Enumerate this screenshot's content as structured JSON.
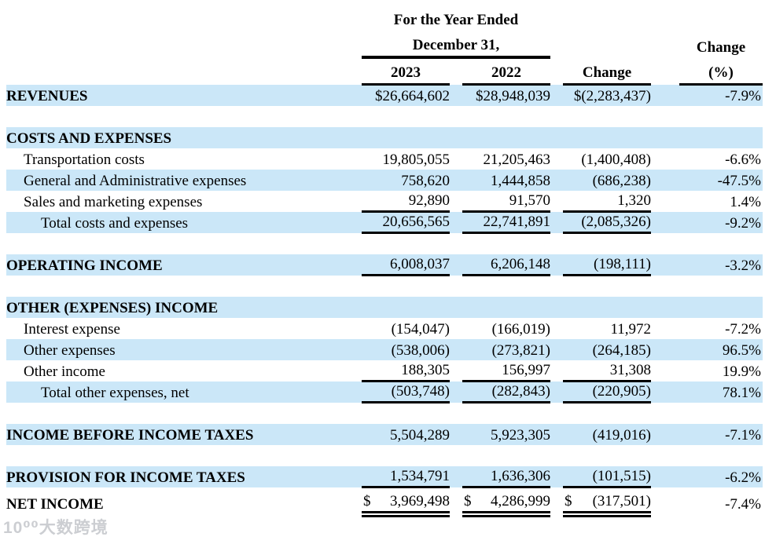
{
  "colors": {
    "row_highlight": "#cbe7f8",
    "rule": "#000000",
    "text": "#000000",
    "watermark": "#c3c6ca"
  },
  "header": {
    "group_title_line1": "For the Year Ended",
    "group_title_line2": "December 31,",
    "col_2023": "2023",
    "col_2022": "2022",
    "col_change": "Change",
    "col_change_pct_line1": "Change",
    "col_change_pct_line2": "(%)"
  },
  "watermark": "10⁰⁰大数跨境",
  "table": {
    "rows": [
      {
        "name": "revenues",
        "label": "REVENUES",
        "bold": true,
        "bg": "blue",
        "v2023": "$26,664,602",
        "v2022": "$28,948,039",
        "change": "$(2,283,437)",
        "pct": "-7.9%",
        "ul": "none"
      },
      {
        "name": "spacer-1",
        "spacer": true
      },
      {
        "name": "costs-and-expenses-header",
        "label": "COSTS AND EXPENSES",
        "bold": true,
        "bg": "blue",
        "ul": "none"
      },
      {
        "name": "transportation-costs",
        "label": "Transportation costs",
        "indent": 1,
        "bg": "white",
        "v2023": "19,805,055",
        "v2022": "21,205,463",
        "change": "(1,400,408)",
        "pct": "-6.6%",
        "ul": "none"
      },
      {
        "name": "general-admin-expenses",
        "label": "General and Administrative expenses",
        "indent": 1,
        "bg": "blue",
        "v2023": "758,620",
        "v2022": "1,444,858",
        "change": "(686,238)",
        "pct": "-47.5%",
        "ul": "none"
      },
      {
        "name": "sales-marketing-expenses",
        "label": "Sales and marketing expenses",
        "indent": 1,
        "bg": "white",
        "v2023": "92,890",
        "v2022": "91,570",
        "change": "1,320",
        "pct": "1.4%",
        "ul": "single"
      },
      {
        "name": "total-costs-expenses",
        "label": "Total costs and expenses",
        "indent": 2,
        "bg": "blue",
        "v2023": "20,656,565",
        "v2022": "22,741,891",
        "change": "(2,085,326)",
        "pct": "-9.2%",
        "ul": "single"
      },
      {
        "name": "spacer-2",
        "spacer": true
      },
      {
        "name": "operating-income",
        "label": "OPERATING INCOME",
        "bold": true,
        "bg": "blue",
        "v2023": "6,008,037",
        "v2022": "6,206,148",
        "change": "(198,111)",
        "pct": "-3.2%",
        "ul": "single"
      },
      {
        "name": "spacer-3",
        "spacer": true
      },
      {
        "name": "other-expenses-income-header",
        "label": "OTHER (EXPENSES) INCOME",
        "bold": true,
        "bg": "blue",
        "ul": "none"
      },
      {
        "name": "interest-expense",
        "label": "Interest expense",
        "indent": 1,
        "bg": "white",
        "v2023": "(154,047)",
        "v2022": "(166,019)",
        "change": "11,972",
        "pct": "-7.2%",
        "ul": "none"
      },
      {
        "name": "other-expenses",
        "label": "Other expenses",
        "indent": 1,
        "bg": "blue",
        "v2023": "(538,006)",
        "v2022": "(273,821)",
        "change": "(264,185)",
        "pct": "96.5%",
        "ul": "none"
      },
      {
        "name": "other-income",
        "label": "Other income",
        "indent": 1,
        "bg": "white",
        "v2023": "188,305",
        "v2022": "156,997",
        "change": "31,308",
        "pct": "19.9%",
        "ul": "single"
      },
      {
        "name": "total-other-expenses-net",
        "label": "Total other expenses, net",
        "indent": 2,
        "bg": "blue",
        "v2023": "(503,748)",
        "v2022": "(282,843)",
        "change": "(220,905)",
        "pct": "78.1%",
        "ul": "single"
      },
      {
        "name": "spacer-4",
        "spacer": true
      },
      {
        "name": "income-before-income-taxes",
        "label": "INCOME BEFORE INCOME TAXES",
        "bold": true,
        "bg": "blue",
        "v2023": "5,504,289",
        "v2022": "5,923,305",
        "change": "(419,016)",
        "pct": "-7.1%",
        "ul": "none"
      },
      {
        "name": "spacer-5",
        "spacer": true
      },
      {
        "name": "provision-for-income-taxes",
        "label": "PROVISION FOR INCOME TAXES",
        "bold": true,
        "bg": "blue",
        "v2023": "1,534,791",
        "v2022": "1,636,306",
        "change": "(101,515)",
        "pct": "-6.2%",
        "ul": "single"
      },
      {
        "name": "net-income",
        "label": "NET INCOME",
        "bold": true,
        "bg": "white",
        "dollar": "$",
        "v2023": "3,969,498",
        "v2022": "4,286,999",
        "change": "(317,501)",
        "pct": "-7.4%",
        "ul": "double"
      }
    ]
  }
}
